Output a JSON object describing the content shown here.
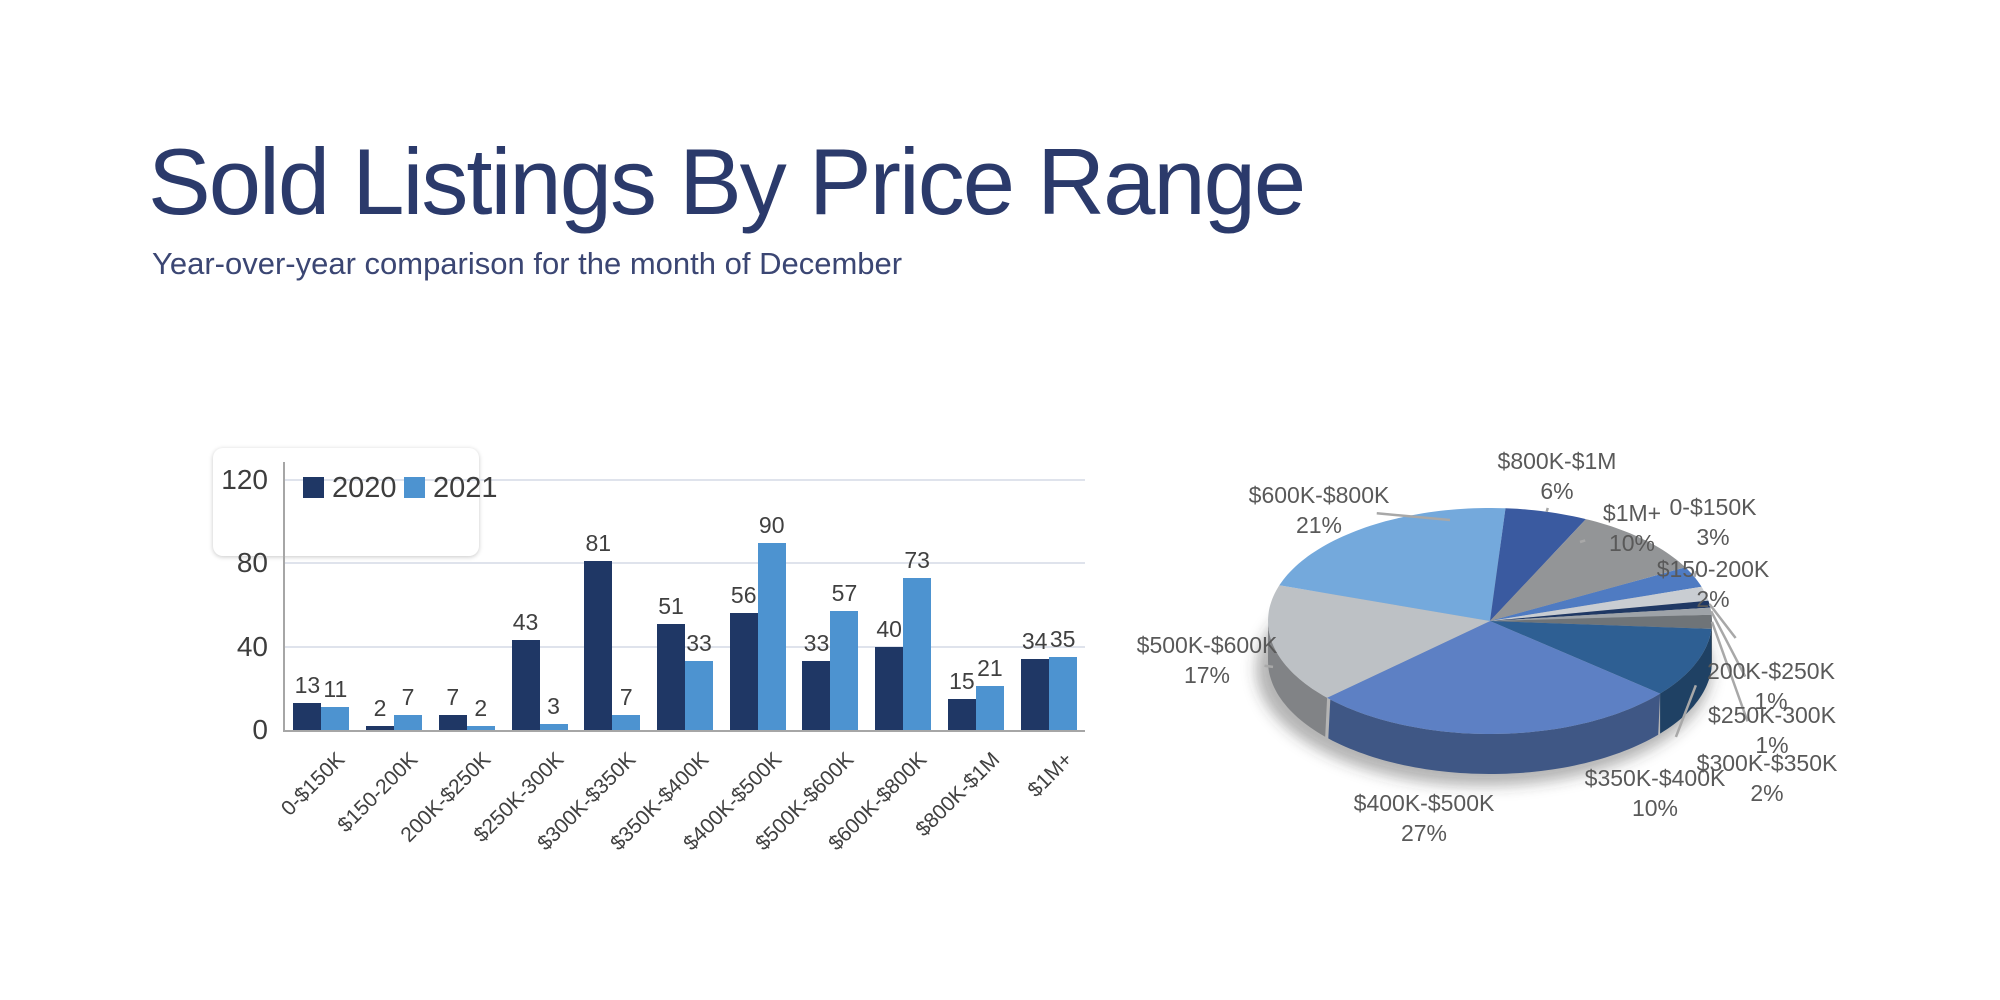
{
  "header": {
    "title": "Sold Listings By Price Range",
    "subtitle": "Year-over-year comparison for the month of December",
    "title_color": "#2b3a6b"
  },
  "chart_data": [
    {
      "type": "bar",
      "title": "",
      "xlabel": "",
      "ylabel": "",
      "categories": [
        "0-$150K",
        "$150-200K",
        "200K-$250K",
        "$250K-300K",
        "$300K-$350K",
        "$350K-$400K",
        "$400K-$500K",
        "$500K-$600K",
        "$600K-$800K",
        "$800K-$1M",
        "$1M+"
      ],
      "series": [
        {
          "name": "2020",
          "color": "#1f3765",
          "values": [
            13,
            2,
            7,
            43,
            81,
            51,
            56,
            33,
            40,
            15,
            34
          ]
        },
        {
          "name": "2021",
          "color": "#4d93d0",
          "values": [
            11,
            7,
            2,
            3,
            7,
            33,
            90,
            57,
            73,
            21,
            35
          ]
        }
      ],
      "ylim": [
        0,
        120
      ],
      "yticks": [
        0,
        40,
        80,
        120
      ],
      "grid": true,
      "value_labels": true,
      "legend_position": "top-left"
    },
    {
      "type": "pie",
      "labels": [
        "0-$150K",
        "$150-200K",
        "200K-$250K",
        "$250K-300K",
        "$300K-$350K",
        "$350K-$400K",
        "$400K-$500K",
        "$500K-$600K",
        "$600K-$800K",
        "$800K-$1M",
        "$1M+"
      ],
      "values": [
        3,
        2,
        1,
        1,
        2,
        10,
        27,
        17,
        21,
        6,
        10
      ],
      "unit": "%",
      "colors": [
        "#4f7bc2",
        "#c9cdd2",
        "#1f3864",
        "#9ea3a8",
        "#6f7478",
        "#2e5f93",
        "#5d80c4",
        "#bdc1c5",
        "#74a9dc",
        "#3a5aa0",
        "#939597"
      ],
      "rotation_deg": 61.6,
      "three_d": true,
      "labels_outside": true,
      "legend_position": "none"
    }
  ]
}
